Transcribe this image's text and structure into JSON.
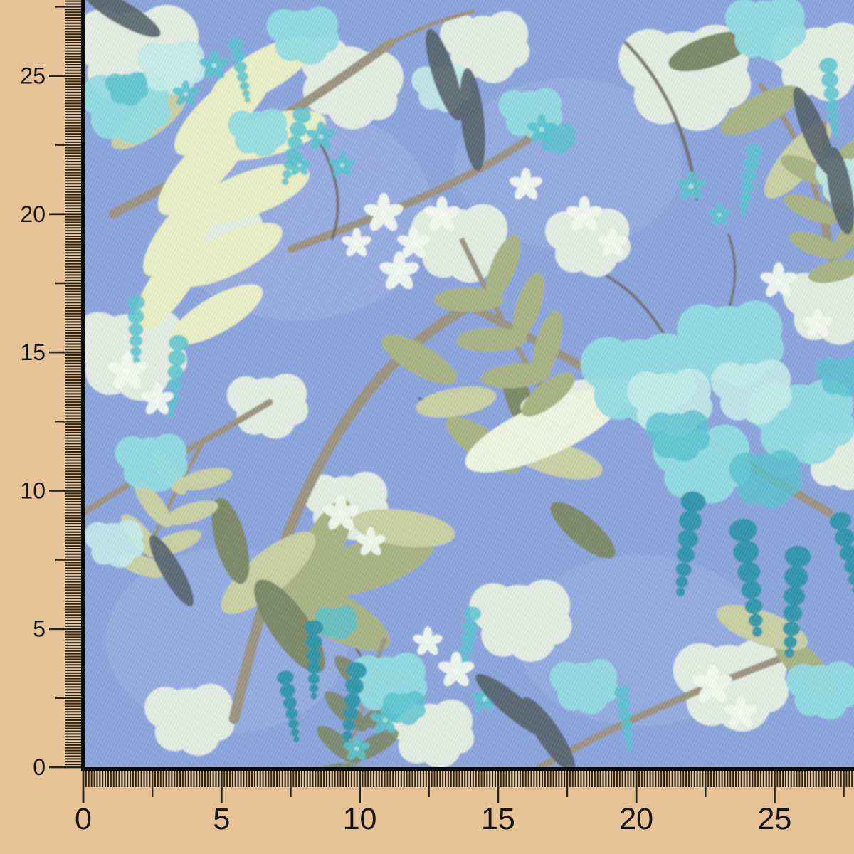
{
  "image": {
    "description": "Photographed fabric swatch of a periwinkle-blue floral print (aqua wisteria and hydrangea blooms with sage and lime leaves on branches), framed by a measuring ruler along the left and bottom edges"
  },
  "rulers": {
    "left": {
      "orientation": "vertical",
      "direction": "values increase upward from bottom origin",
      "labels": [
        "0",
        "5",
        "10",
        "15",
        "20",
        "25"
      ],
      "tick_pattern": {
        "minor_ticks_per_label_interval": 50,
        "medium_tick_at_interval_midpoint": true
      }
    },
    "bottom": {
      "orientation": "horizontal",
      "direction": "values increase rightward from left origin",
      "labels": [
        "0",
        "5",
        "10",
        "15",
        "20",
        "25"
      ],
      "tick_pattern": {
        "minor_ticks_per_label_interval": 50,
        "medium_tick_at_interval_midpoint": true
      }
    }
  },
  "colors": {
    "ruler_background": "#e5c397",
    "tick": "#2a2318",
    "label_text": "#19140e",
    "border": "#0b0b0b",
    "fabric_base": "#8ca5dd",
    "fabric_light": "#a3b6e6",
    "cream": "#ebf3e3",
    "white_flower": "#f4f9f0",
    "aqua_light": "#c4ecea",
    "aqua": "#93dde2",
    "aqua_deep": "#58c4cf",
    "teal": "#2e96aa",
    "lime_leaf": "#e9efc4",
    "sage": "#a9b383",
    "sage_light": "#c9d0a4",
    "sage_dark": "#7d8a68",
    "slate_leaf": "#55626a",
    "branch": "#9b9480",
    "branch_dark": "#6b675a",
    "ivory_leaf": "#eef4df"
  }
}
